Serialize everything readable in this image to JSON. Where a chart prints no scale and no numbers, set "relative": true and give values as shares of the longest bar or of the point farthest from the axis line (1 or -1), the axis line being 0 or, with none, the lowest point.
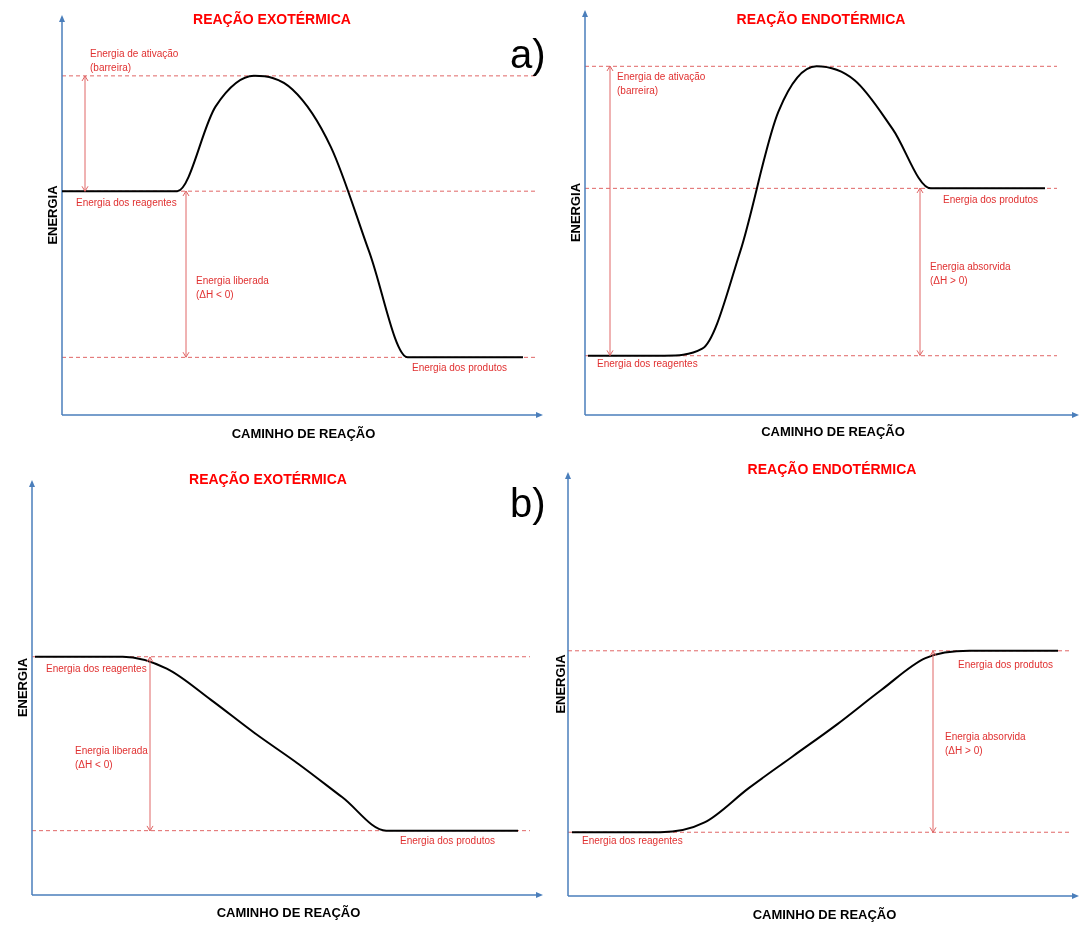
{
  "chart_data": [
    {
      "type": "line",
      "title": "REAÇÃO EXOTÉRMICA",
      "xlabel": "CAMINHO DE REAÇÃO",
      "ylabel": "ENERGIA",
      "relative": true,
      "legend": false,
      "tick_labels": false,
      "marker": "none",
      "categories": [
        null,
        null,
        null,
        null,
        null,
        null,
        null,
        null,
        null,
        null,
        null,
        null,
        null
      ],
      "series": [
        {
          "color": "#000000",
          "values": [
            0.66,
            0.66,
            0.66,
            0.66,
            0.91,
            1,
            0.96,
            0.79,
            0.48,
            0.17,
            0.17,
            0.17,
            0.17
          ]
        }
      ],
      "ref_lines": [
        {
          "axis": "y",
          "value": 1,
          "color": "#e06666",
          "line_style": "dashed"
        },
        {
          "axis": "y",
          "value": 0.66,
          "color": "#e06666",
          "line_style": "dashed"
        },
        {
          "axis": "y",
          "value": 0.17,
          "color": "#e06666",
          "line_style": "dashed"
        }
      ],
      "annotations": [
        "Energia de ativação\n(barreira)",
        "Energia dos reagentes",
        "Energia liberada\n(ΔH < 0)",
        "Energia dos produtos",
        "a)"
      ]
    },
    {
      "type": "line",
      "title": "REAÇÃO ENDOTÉRMICA",
      "xlabel": "CAMINHO DE REAÇÃO",
      "ylabel": "ENERGIA",
      "relative": true,
      "legend": false,
      "tick_labels": false,
      "marker": "none",
      "categories": [
        null,
        null,
        null,
        null,
        null,
        null,
        null,
        null,
        null,
        null,
        null,
        null,
        null
      ],
      "series": [
        {
          "color": "#000000",
          "values": [
            0.17,
            0.17,
            0.17,
            0.19,
            0.47,
            0.87,
            1,
            0.96,
            0.82,
            0.65,
            0.65,
            0.65,
            0.65
          ]
        }
      ],
      "ref_lines": [
        {
          "axis": "y",
          "value": 1,
          "color": "#e06666",
          "line_style": "dashed"
        },
        {
          "axis": "y",
          "value": 0.65,
          "color": "#e06666",
          "line_style": "dashed"
        },
        {
          "axis": "y",
          "value": 0.17,
          "color": "#e06666",
          "line_style": "dashed"
        }
      ],
      "annotations": [
        "Energia de ativação\n(barreira)",
        "Energia dos produtos",
        "Energia absorvida\n(ΔH > 0)",
        "Energia dos reagentes"
      ]
    },
    {
      "type": "line",
      "title": "REAÇÃO EXOTÉRMICA",
      "xlabel": "CAMINHO DE REAÇÃO",
      "ylabel": "ENERGIA",
      "relative": true,
      "legend": false,
      "tick_labels": false,
      "marker": "none",
      "categories": [
        null,
        null,
        null,
        null,
        null,
        null,
        null,
        null,
        null,
        null,
        null,
        null
      ],
      "series": [
        {
          "color": "#000000",
          "values": [
            1,
            1,
            1,
            0.95,
            0.82,
            0.68,
            0.55,
            0.41,
            0.27,
            0.27,
            0.27,
            0.27
          ]
        }
      ],
      "ref_lines": [
        {
          "axis": "y",
          "value": 1,
          "color": "#e06666",
          "line_style": "dashed"
        },
        {
          "axis": "y",
          "value": 0.27,
          "color": "#e06666",
          "line_style": "dashed"
        }
      ],
      "annotations": [
        "Energia dos reagentes",
        "Energia liberada\n(ΔH < 0)",
        "Energia dos produtos",
        "b)"
      ]
    },
    {
      "type": "line",
      "title": "REAÇÃO ENDOTÉRMICA",
      "xlabel": "CAMINHO DE REAÇÃO",
      "ylabel": "ENERGIA",
      "relative": true,
      "legend": false,
      "tick_labels": false,
      "marker": "none",
      "categories": [
        null,
        null,
        null,
        null,
        null,
        null,
        null,
        null,
        null,
        null,
        null,
        null
      ],
      "series": [
        {
          "color": "#000000",
          "values": [
            0.26,
            0.26,
            0.26,
            0.3,
            0.44,
            0.57,
            0.7,
            0.84,
            0.97,
            1,
            1,
            1
          ]
        }
      ],
      "ref_lines": [
        {
          "axis": "y",
          "value": 1,
          "color": "#e06666",
          "line_style": "dashed"
        },
        {
          "axis": "y",
          "value": 0.26,
          "color": "#e06666",
          "line_style": "dashed"
        }
      ],
      "annotations": [
        "Energia dos produtos",
        "Energia absorvida\n(ΔH > 0)",
        "Energia dos reagentes"
      ]
    }
  ]
}
